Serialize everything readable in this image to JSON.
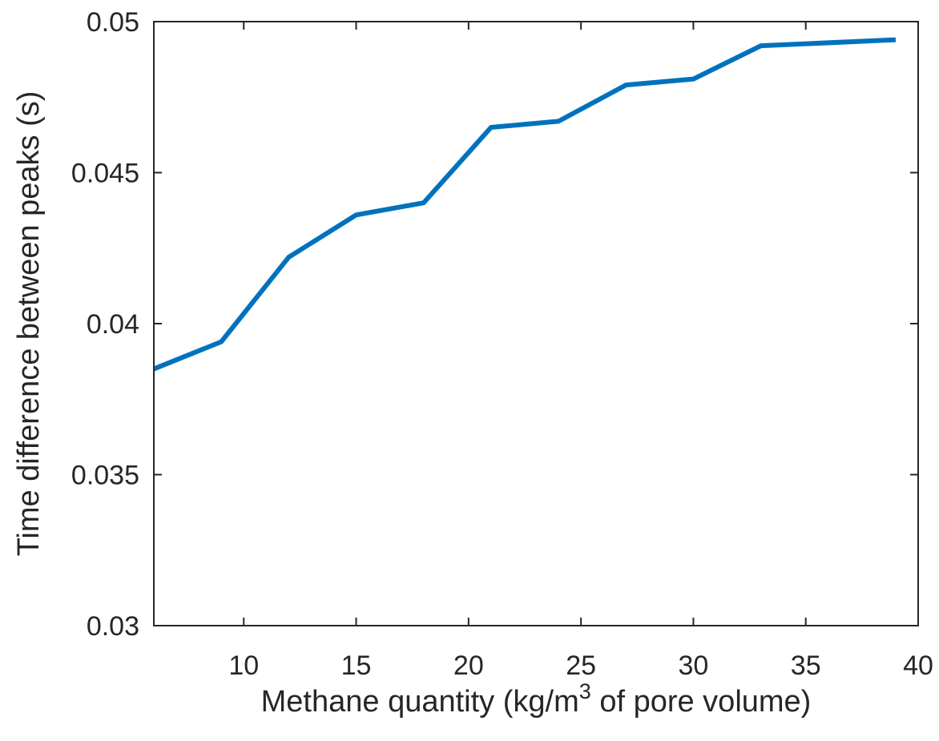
{
  "chart_data": {
    "type": "line",
    "title": "",
    "xlabel_prefix": "Methane quantity (kg/m",
    "xlabel_sup": "3",
    "xlabel_suffix": " of pore volume)",
    "ylabel": "Time difference between peaks (s)",
    "xlim": [
      6,
      40
    ],
    "ylim": [
      0.03,
      0.05
    ],
    "xticks": [
      10,
      15,
      20,
      25,
      30,
      35,
      40
    ],
    "xtick_labels": [
      "10",
      "15",
      "20",
      "25",
      "30",
      "35",
      "40"
    ],
    "yticks": [
      0.03,
      0.035,
      0.04,
      0.045,
      0.05
    ],
    "ytick_labels": [
      "0.03",
      "0.035",
      "0.04",
      "0.045",
      "0.05"
    ],
    "grid": false,
    "series": [
      {
        "color": "#0072bd",
        "x": [
          6,
          9,
          12,
          15,
          18,
          21,
          24,
          27,
          30,
          33,
          39
        ],
        "y": [
          0.0385,
          0.0394,
          0.0422,
          0.0436,
          0.044,
          0.0465,
          0.0467,
          0.0479,
          0.0481,
          0.0492,
          0.0494
        ]
      }
    ]
  }
}
